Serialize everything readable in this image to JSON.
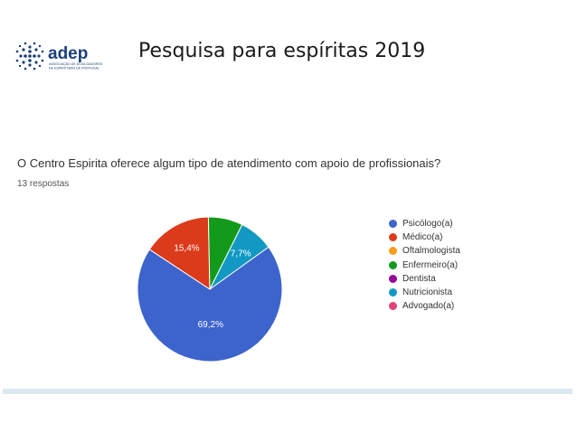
{
  "header": {
    "logo_name": "adep",
    "logo_subtext": [
      "ASSOCIAÇÃO DE DIVULGADORES",
      "DE ESPIRITISMO DE PORTUGAL"
    ],
    "title": "Pesquisa para espíritas  2019"
  },
  "chart_data": {
    "type": "pie",
    "title": "O Centro Espirita oferece algum tipo de atendimento com apoio de profissionais?",
    "subtitle": "13 respostas",
    "legend_position": "right",
    "slices": [
      {
        "label": "Psicólogo(a)",
        "value": 69.2,
        "data_label": "69,2%",
        "color": "#3c64cc"
      },
      {
        "label": "Médico(a)",
        "value": 15.4,
        "data_label": "15,4%",
        "color": "#db3a1b"
      },
      {
        "label": "Oftalmologista",
        "value": 0,
        "data_label": "",
        "color": "#fb9e1b"
      },
      {
        "label": "Enfermeiro(a)",
        "value": 7.7,
        "data_label": "",
        "color": "#149a1b"
      },
      {
        "label": "Dentista",
        "value": 0,
        "data_label": "",
        "color": "#95069a"
      },
      {
        "label": "Nutricionista",
        "value": 7.7,
        "data_label": "7,7%",
        "color": "#1199c3"
      },
      {
        "label": "Advogado(a)",
        "value": 0,
        "data_label": "",
        "color": "#dd4477"
      }
    ]
  }
}
